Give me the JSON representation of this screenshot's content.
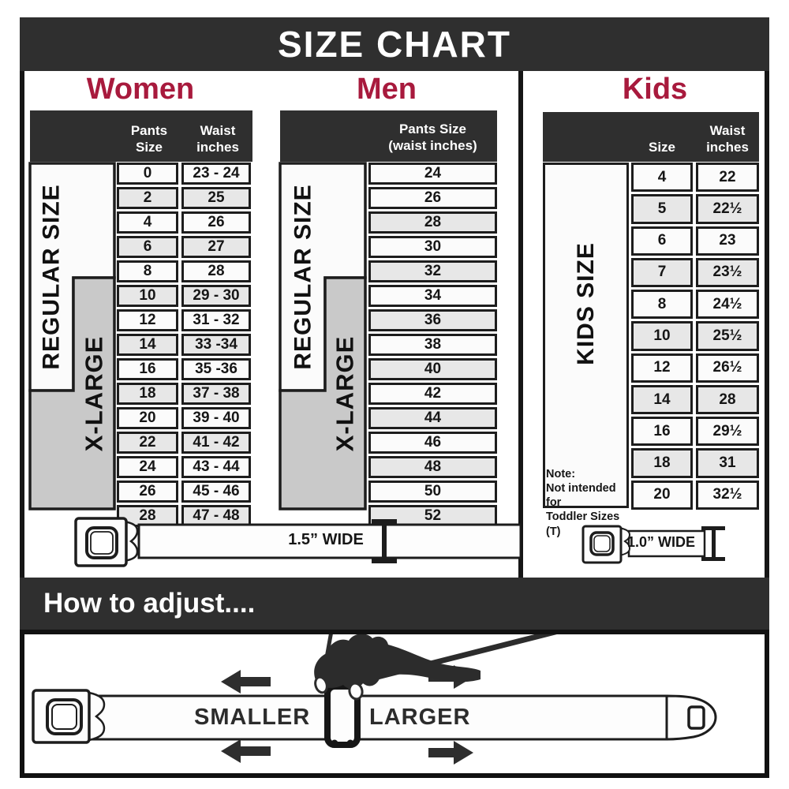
{
  "page": {
    "title": "SIZE CHART",
    "accent_red": "#a81a3d",
    "dark_gray": "#2f2f2f"
  },
  "women": {
    "title": "Women",
    "col1_header": "Pants Size",
    "col2_header_line1": "Waist",
    "col2_header_line2": "inches",
    "regular_label": "REGULAR SIZE",
    "xlarge_label": "X-LARGE",
    "belt_label": "1.5” WIDE",
    "rows": [
      {
        "size": "0",
        "waist": "23 - 24",
        "shaded": false
      },
      {
        "size": "2",
        "waist": "25",
        "shaded": true
      },
      {
        "size": "4",
        "waist": "26",
        "shaded": false
      },
      {
        "size": "6",
        "waist": "27",
        "shaded": true
      },
      {
        "size": "8",
        "waist": "28",
        "shaded": false
      },
      {
        "size": "10",
        "waist": "29 - 30",
        "shaded": true
      },
      {
        "size": "12",
        "waist": "31 - 32",
        "shaded": false
      },
      {
        "size": "14",
        "waist": "33 -34",
        "shaded": true
      },
      {
        "size": "16",
        "waist": "35 -36",
        "shaded": false
      },
      {
        "size": "18",
        "waist": "37 - 38",
        "shaded": true
      },
      {
        "size": "20",
        "waist": "39 - 40",
        "shaded": false
      },
      {
        "size": "22",
        "waist": "41 - 42",
        "shaded": true
      },
      {
        "size": "24",
        "waist": "43 - 44",
        "shaded": false
      },
      {
        "size": "26",
        "waist": "45 - 46",
        "shaded": false
      },
      {
        "size": "28",
        "waist": "47 - 48",
        "shaded": true
      }
    ]
  },
  "men": {
    "title": "Men",
    "header_line1": "Pants Size",
    "header_line2": "(waist inches)",
    "regular_label": "REGULAR SIZE",
    "xlarge_label": "X-LARGE",
    "rows": [
      {
        "size": "24",
        "shaded": false
      },
      {
        "size": "26",
        "shaded": false
      },
      {
        "size": "28",
        "shaded": true
      },
      {
        "size": "30",
        "shaded": false
      },
      {
        "size": "32",
        "shaded": true
      },
      {
        "size": "34",
        "shaded": false
      },
      {
        "size": "36",
        "shaded": true
      },
      {
        "size": "38",
        "shaded": false
      },
      {
        "size": "40",
        "shaded": true
      },
      {
        "size": "42",
        "shaded": false
      },
      {
        "size": "44",
        "shaded": true
      },
      {
        "size": "46",
        "shaded": false
      },
      {
        "size": "48",
        "shaded": true
      },
      {
        "size": "50",
        "shaded": false
      },
      {
        "size": "52",
        "shaded": true
      }
    ]
  },
  "kids": {
    "title": "Kids",
    "col1_header": "Size",
    "col2_header_line1": "Waist",
    "col2_header_line2": "inches",
    "side_label": "KIDS SIZE",
    "note_line1": "Note:",
    "note_line2": "Not intended for",
    "note_line3": "Toddler Sizes (T)",
    "belt_label": "1.0” WIDE",
    "rows": [
      {
        "size": "4",
        "waist": "22",
        "shaded": false
      },
      {
        "size": "5",
        "waist": "22½",
        "shaded": true
      },
      {
        "size": "6",
        "waist": "23",
        "shaded": false
      },
      {
        "size": "7",
        "waist": "23½",
        "shaded": true
      },
      {
        "size": "8",
        "waist": "24½",
        "shaded": false
      },
      {
        "size": "10",
        "waist": "25½",
        "shaded": true
      },
      {
        "size": "12",
        "waist": "26½",
        "shaded": false
      },
      {
        "size": "14",
        "waist": "28",
        "shaded": true
      },
      {
        "size": "16",
        "waist": "29½",
        "shaded": false
      },
      {
        "size": "18",
        "waist": "31",
        "shaded": true
      },
      {
        "size": "20",
        "waist": "32½",
        "shaded": false
      }
    ]
  },
  "adjust": {
    "heading": "How to adjust....",
    "smaller_label": "SMALLER",
    "larger_label": "LARGER"
  }
}
